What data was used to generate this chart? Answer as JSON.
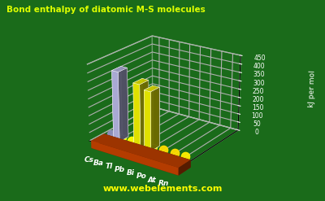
{
  "title": "Bond enthalpy of diatomic M-S molecules",
  "ylabel": "kJ per mol",
  "elements": [
    "Cs",
    "Ba",
    "Tl",
    "Pb",
    "Bi",
    "Po",
    "At",
    "Rn"
  ],
  "values": [
    0,
    410,
    0,
    370,
    345,
    0,
    0,
    0
  ],
  "bar_colors": {
    "Cs": "#c0c0f0",
    "Ba": "#c0c0f0",
    "Tl": "#ffff00",
    "Pb": "#ffff00",
    "Bi": "#ffff00",
    "Po": "#ffff00",
    "At": "#ffff00",
    "Rn": "#ffff00"
  },
  "dot_colors": {
    "Cs": "#9090c0",
    "Tl": "#ffff00",
    "Po": "#ffdd00",
    "At": "#ffdd00",
    "Rn": "#ffee00"
  },
  "background_color": "#1a6b1a",
  "platform_color": "#cc4400",
  "title_color": "#ddff00",
  "ylabel_color": "#ffffff",
  "tick_color": "#ffffff",
  "ylim": [
    0,
    450
  ],
  "yticks": [
    0,
    50,
    100,
    150,
    200,
    250,
    300,
    350,
    400,
    450
  ],
  "watermark": "www.webelements.com",
  "watermark_color": "#ffff00",
  "figsize": [
    4.0,
    2.47
  ],
  "dpi": 100
}
